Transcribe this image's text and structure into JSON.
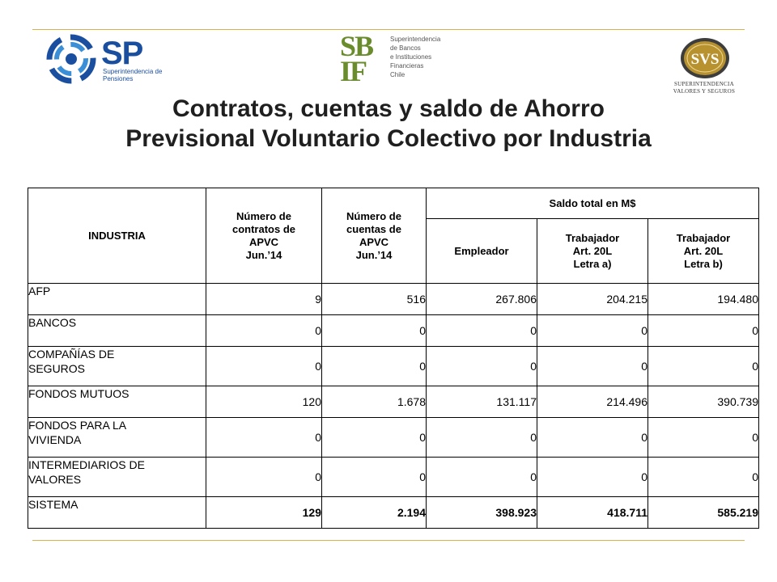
{
  "logos": {
    "sp": {
      "mark": "SP",
      "subtitle_line1": "Superintendencia de",
      "subtitle_line2": "Pensiones"
    },
    "sbif": {
      "mark_top": "SB",
      "mark_bottom": "IF",
      "lines": [
        "Superintendencia",
        "de Bancos",
        "e Instituciones",
        "Financieras",
        "Chile"
      ]
    },
    "svs": {
      "mark": "SVS",
      "subtitle_line1": "SUPERINTENDENCIA",
      "subtitle_line2": "VALORES Y SEGUROS"
    }
  },
  "title": {
    "line1": "Contratos, cuentas y saldo de Ahorro",
    "line2": "Previsional Voluntario Colectivo por Industria"
  },
  "table": {
    "headers": {
      "industria": "INDUSTRIA",
      "contratos": [
        "Número de",
        "contratos de",
        "APVC",
        "Jun.’14"
      ],
      "cuentas": [
        "Número de",
        "cuentas de",
        "APVC",
        "Jun.’14"
      ],
      "saldo": "Saldo total en M$",
      "empleador": "Empleador",
      "trab_a": [
        "Trabajador",
        "Art. 20L",
        "Letra a)"
      ],
      "trab_b": [
        "Trabajador",
        "Art. 20L",
        "Letra b)"
      ]
    },
    "rows": [
      {
        "name": [
          "AFP"
        ],
        "contratos": "9",
        "cuentas": "516",
        "empleador": "267.806",
        "trab_a": "204.215",
        "trab_b": "194.480"
      },
      {
        "name": [
          "BANCOS"
        ],
        "contratos": "0",
        "cuentas": "0",
        "empleador": "0",
        "trab_a": "0",
        "trab_b": "0"
      },
      {
        "name": [
          "COMPAÑÍAS DE",
          "SEGUROS"
        ],
        "contratos": "0",
        "cuentas": "0",
        "empleador": "0",
        "trab_a": "0",
        "trab_b": "0"
      },
      {
        "name": [
          "FONDOS MUTUOS"
        ],
        "contratos": "120",
        "cuentas": "1.678",
        "empleador": "131.117",
        "trab_a": "214.496",
        "trab_b": "390.739"
      },
      {
        "name": [
          "FONDOS PARA LA",
          "VIVIENDA"
        ],
        "contratos": "0",
        "cuentas": "0",
        "empleador": "0",
        "trab_a": "0",
        "trab_b": "0"
      },
      {
        "name": [
          "INTERMEDIARIOS DE",
          "VALORES"
        ],
        "contratos": "0",
        "cuentas": "0",
        "empleador": "0",
        "trab_a": "0",
        "trab_b": "0"
      }
    ],
    "total": {
      "name": "SISTEMA",
      "contratos": "129",
      "cuentas": "2.194",
      "empleador": "398.923",
      "trab_a": "418.711",
      "trab_b": "585.219"
    }
  },
  "colors": {
    "rule": "#d9b24c",
    "sp_blue": "#1a4fa0",
    "sbif_green": "#6a8c2c",
    "svs_gold": "#b8922e",
    "svs_dark": "#3d3d3d"
  }
}
